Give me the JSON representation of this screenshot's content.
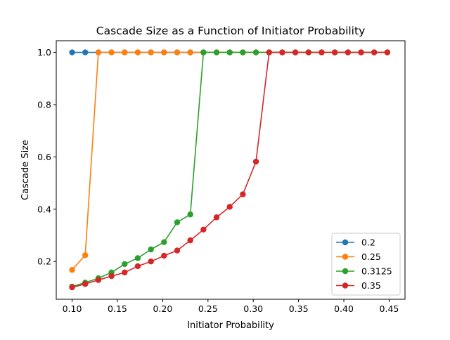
{
  "chart_data": {
    "type": "line",
    "title": "Cascade Size as a Function of Initiator Probability",
    "xlabel": "Initiator Probability",
    "ylabel": "Cascade Size",
    "xlim": [
      0.0825,
      0.4675
    ],
    "ylim": [
      0.0555,
      1.0445
    ],
    "xticks": [
      "0.10",
      "0.15",
      "0.20",
      "0.25",
      "0.30",
      "0.35",
      "0.40",
      "0.45"
    ],
    "xtick_values": [
      0.1,
      0.15,
      0.2,
      0.25,
      0.3,
      0.35,
      0.4,
      0.45
    ],
    "yticks": [
      "0.2",
      "0.4",
      "0.6",
      "0.8",
      "1.0"
    ],
    "ytick_values": [
      0.2,
      0.4,
      0.6,
      0.8,
      1.0
    ],
    "grid": false,
    "legend_position": "bottom-right",
    "x": [
      0.1,
      0.1145,
      0.129,
      0.1435,
      0.158,
      0.1725,
      0.187,
      0.2015,
      0.216,
      0.2305,
      0.245,
      0.2595,
      0.274,
      0.2885,
      0.303,
      0.3175,
      0.332,
      0.3465,
      0.361,
      0.3755,
      0.39,
      0.4045,
      0.419,
      0.4335,
      0.448
    ],
    "series": [
      {
        "name": "0.2",
        "color": "#1f77b4",
        "values": [
          1,
          1,
          1,
          1,
          1,
          1,
          1,
          1,
          1,
          1,
          1,
          1,
          1,
          1,
          1,
          1,
          1,
          1,
          1,
          1,
          1,
          1,
          1,
          1,
          1
        ]
      },
      {
        "name": "0.25",
        "color": "#ff7f0e",
        "values": [
          0.168,
          0.224,
          1,
          1,
          1,
          1,
          1,
          1,
          1,
          1,
          1,
          1,
          1,
          1,
          1,
          1,
          1,
          1,
          1,
          1,
          1,
          1,
          1,
          1,
          1
        ]
      },
      {
        "name": "0.3125",
        "color": "#2ca02c",
        "values": [
          0.104,
          0.119,
          0.136,
          0.158,
          0.19,
          0.213,
          0.246,
          0.274,
          0.35,
          0.38,
          1,
          1,
          1,
          1,
          1,
          1,
          1,
          1,
          1,
          1,
          1,
          1,
          1,
          1,
          1
        ]
      },
      {
        "name": "0.35",
        "color": "#d62728",
        "values": [
          0.101,
          0.114,
          0.129,
          0.144,
          0.158,
          0.182,
          0.2,
          0.222,
          0.242,
          0.281,
          0.322,
          0.369,
          0.409,
          0.457,
          0.582,
          1,
          1,
          1,
          1,
          1,
          1,
          1,
          1,
          1,
          1
        ]
      }
    ]
  }
}
